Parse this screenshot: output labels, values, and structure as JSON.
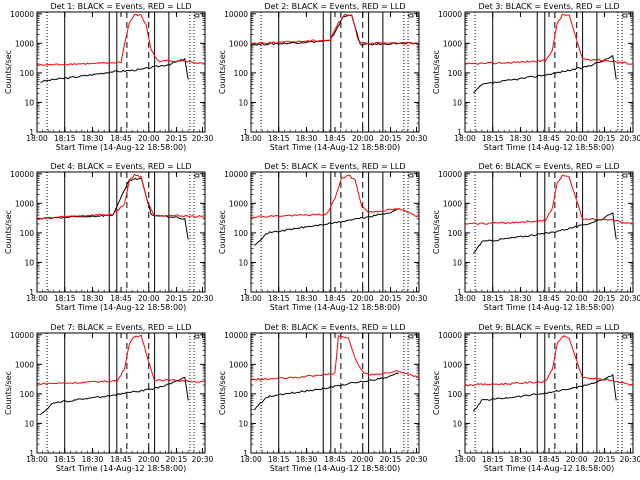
{
  "figure": {
    "xlabel": "Start Time (14-Aug-12 18:58:00)",
    "ylabel": "Counts/sec",
    "x_ticks": [
      "18:00",
      "18:15",
      "18:30",
      "18:45",
      "20:00",
      "20:15",
      "20:30"
    ],
    "y_ticks": [
      "1",
      "10",
      "100",
      "1000",
      "10000"
    ]
  },
  "colors": {
    "events": "#000000",
    "lld": "#ff0000",
    "background": "#ffffff"
  },
  "chart_data": [
    {
      "type": "line",
      "title": "Det 1: BLACK = Events, RED = LLD",
      "xlabel": "Start Time (14-Aug-12 18:58:00)",
      "ylabel": "Counts/sec",
      "ylim": [
        1,
        10000
      ],
      "y_scale": "log",
      "series": [
        {
          "name": "Events",
          "color": "#000000",
          "x": [
            0.02,
            0.1,
            0.25,
            0.45,
            0.47,
            0.62,
            0.7,
            0.78,
            0.88,
            0.9
          ],
          "y": [
            50,
            60,
            75,
            110,
            110,
            130,
            160,
            190,
            290,
            60
          ]
        },
        {
          "name": "LLD",
          "color": "#ff0000",
          "x": [
            0.0,
            0.2,
            0.4,
            0.5,
            0.52,
            0.55,
            0.58,
            0.62,
            0.65,
            0.68,
            0.72,
            0.85,
            1.0
          ],
          "y": [
            180,
            200,
            210,
            230,
            900,
            5000,
            9000,
            9000,
            4000,
            600,
            250,
            260,
            200
          ]
        }
      ]
    },
    {
      "type": "line",
      "title": "Det 2: BLACK = Events, RED = LLD",
      "xlabel": "Start Time (14-Aug-12 18:58:00)",
      "ylabel": "Counts/sec",
      "ylim": [
        1,
        10000
      ],
      "y_scale": "log",
      "series": [
        {
          "name": "Events",
          "color": "#000000",
          "x": [
            0.0,
            0.2,
            0.45,
            0.47,
            0.55,
            0.6,
            0.65,
            0.8,
            0.85,
            1.0
          ],
          "y": [
            900,
            1000,
            1200,
            1200,
            8000,
            9000,
            900,
            950,
            1000,
            1000
          ]
        },
        {
          "name": "LLD",
          "color": "#ff0000",
          "x": [
            0.0,
            0.2,
            0.45,
            0.47,
            0.52,
            0.56,
            0.6,
            0.64,
            0.7,
            1.0
          ],
          "y": [
            1000,
            1100,
            1300,
            1300,
            5000,
            9000,
            9000,
            1200,
            1000,
            1000
          ]
        }
      ]
    },
    {
      "type": "line",
      "title": "Det 3: BLACK = Events, RED = LLD",
      "xlabel": "Start Time (14-Aug-12 18:58:00)",
      "ylabel": "Counts/sec",
      "ylim": [
        1,
        10000
      ],
      "y_scale": "log",
      "series": [
        {
          "name": "Events",
          "color": "#000000",
          "x": [
            0.05,
            0.1,
            0.3,
            0.5,
            0.7,
            0.82,
            0.88,
            0.9
          ],
          "y": [
            20,
            40,
            60,
            90,
            150,
            250,
            380,
            60
          ]
        },
        {
          "name": "LLD",
          "color": "#ff0000",
          "x": [
            0.0,
            0.25,
            0.48,
            0.52,
            0.55,
            0.58,
            0.62,
            0.66,
            0.7,
            0.85,
            1.0
          ],
          "y": [
            200,
            220,
            260,
            600,
            5000,
            9000,
            9000,
            1500,
            300,
            260,
            200
          ]
        }
      ]
    },
    {
      "type": "line",
      "title": "Det 4: BLACK = Events, RED = LLD",
      "xlabel": "Start Time (14-Aug-12 18:58:00)",
      "ylabel": "Counts/sec",
      "ylim": [
        1,
        10000
      ],
      "y_scale": "log",
      "series": [
        {
          "name": "Events",
          "color": "#000000",
          "x": [
            0.0,
            0.25,
            0.45,
            0.55,
            0.62,
            0.68,
            0.8,
            0.88,
            0.9
          ],
          "y": [
            300,
            350,
            400,
            6000,
            7000,
            400,
            350,
            300,
            60
          ]
        },
        {
          "name": "LLD",
          "color": "#ff0000",
          "x": [
            0.0,
            0.25,
            0.45,
            0.52,
            0.55,
            0.58,
            0.62,
            0.66,
            0.7,
            0.85,
            1.0
          ],
          "y": [
            300,
            380,
            420,
            900,
            6000,
            9000,
            8000,
            1000,
            400,
            380,
            350
          ]
        }
      ]
    },
    {
      "type": "line",
      "title": "Det 5: BLACK = Events, RED = LLD",
      "xlabel": "Start Time (14-Aug-12 18:58:00)",
      "ylabel": "Counts/sec",
      "ylim": [
        1,
        10000
      ],
      "y_scale": "log",
      "series": [
        {
          "name": "Events",
          "color": "#000000",
          "x": [
            0.02,
            0.1,
            0.3,
            0.5,
            0.7,
            0.82,
            0.88
          ],
          "y": [
            40,
            100,
            150,
            220,
            350,
            480,
            650
          ]
        },
        {
          "name": "LLD",
          "color": "#ff0000",
          "x": [
            0.0,
            0.2,
            0.45,
            0.5,
            0.54,
            0.58,
            0.62,
            0.66,
            0.7,
            0.88,
            1.0
          ],
          "y": [
            350,
            380,
            420,
            1500,
            7000,
            9000,
            6000,
            800,
            500,
            650,
            350
          ]
        }
      ]
    },
    {
      "type": "line",
      "title": "Det 6: BLACK = Events, RED = LLD",
      "xlabel": "Start Time (14-Aug-12 18:58:00)",
      "ylabel": "Counts/sec",
      "ylim": [
        1,
        10000
      ],
      "y_scale": "log",
      "series": [
        {
          "name": "Events",
          "color": "#000000",
          "x": [
            0.05,
            0.1,
            0.3,
            0.5,
            0.7,
            0.82,
            0.88,
            0.9
          ],
          "y": [
            20,
            50,
            70,
            100,
            180,
            300,
            450,
            60
          ]
        },
        {
          "name": "LLD",
          "color": "#ff0000",
          "x": [
            0.0,
            0.25,
            0.48,
            0.52,
            0.55,
            0.58,
            0.62,
            0.66,
            0.7,
            0.85,
            1.0
          ],
          "y": [
            200,
            220,
            260,
            700,
            5000,
            9000,
            8000,
            1500,
            300,
            280,
            200
          ]
        }
      ]
    },
    {
      "type": "line",
      "title": "Det 7: BLACK = Events, RED = LLD",
      "xlabel": "Start Time (14-Aug-12 18:58:00)",
      "ylabel": "Counts/sec",
      "ylim": [
        1,
        10000
      ],
      "y_scale": "log",
      "series": [
        {
          "name": "Events",
          "color": "#000000",
          "x": [
            0.02,
            0.1,
            0.3,
            0.45,
            0.7,
            0.82,
            0.88,
            0.9
          ],
          "y": [
            20,
            50,
            70,
            90,
            150,
            250,
            380,
            60
          ]
        },
        {
          "name": "LLD",
          "color": "#ff0000",
          "x": [
            0.0,
            0.25,
            0.48,
            0.52,
            0.55,
            0.58,
            0.62,
            0.66,
            0.7,
            0.85,
            1.0
          ],
          "y": [
            220,
            240,
            280,
            700,
            5000,
            9000,
            9000,
            1500,
            300,
            280,
            250
          ]
        }
      ]
    },
    {
      "type": "line",
      "title": "Det 8: BLACK = Events, RED = LLD",
      "xlabel": "Start Time (14-Aug-12 18:58:00)",
      "ylabel": "Counts/sec",
      "ylim": [
        1,
        10000
      ],
      "y_scale": "log",
      "series": [
        {
          "name": "Events",
          "color": "#000000",
          "x": [
            0.02,
            0.1,
            0.3,
            0.45,
            0.5,
            0.6,
            0.7,
            0.82,
            0.88
          ],
          "y": [
            30,
            80,
            120,
            160,
            180,
            230,
            280,
            380,
            500
          ]
        },
        {
          "name": "LLD",
          "color": "#ff0000",
          "x": [
            0.0,
            0.25,
            0.45,
            0.5,
            0.52,
            0.58,
            0.62,
            0.66,
            0.7,
            0.8,
            0.88,
            1.0
          ],
          "y": [
            300,
            350,
            450,
            500,
            9000,
            8000,
            1500,
            600,
            450,
            500,
            600,
            350
          ]
        }
      ]
    },
    {
      "type": "line",
      "title": "Det 9: BLACK = Events, RED = LLD",
      "xlabel": "Start Time (14-Aug-12 18:58:00)",
      "ylabel": "Counts/sec",
      "ylim": [
        1,
        10000
      ],
      "y_scale": "log",
      "series": [
        {
          "name": "Events",
          "color": "#000000",
          "x": [
            0.05,
            0.1,
            0.3,
            0.5,
            0.7,
            0.82,
            0.88,
            0.9
          ],
          "y": [
            25,
            60,
            80,
            110,
            180,
            300,
            450,
            60
          ]
        },
        {
          "name": "LLD",
          "color": "#ff0000",
          "x": [
            0.0,
            0.25,
            0.48,
            0.52,
            0.55,
            0.58,
            0.62,
            0.66,
            0.7,
            0.85,
            1.0
          ],
          "y": [
            200,
            220,
            260,
            700,
            5000,
            9000,
            8000,
            1500,
            350,
            300,
            200
          ]
        }
      ]
    }
  ]
}
